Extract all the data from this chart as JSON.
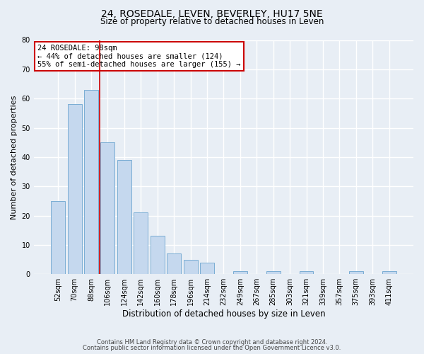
{
  "title": "24, ROSEDALE, LEVEN, BEVERLEY, HU17 5NE",
  "subtitle": "Size of property relative to detached houses in Leven",
  "bar_labels": [
    "52sqm",
    "70sqm",
    "88sqm",
    "106sqm",
    "124sqm",
    "142sqm",
    "160sqm",
    "178sqm",
    "196sqm",
    "214sqm",
    "232sqm",
    "249sqm",
    "267sqm",
    "285sqm",
    "303sqm",
    "321sqm",
    "339sqm",
    "357sqm",
    "375sqm",
    "393sqm",
    "411sqm"
  ],
  "bar_values": [
    25,
    58,
    63,
    45,
    39,
    21,
    13,
    7,
    5,
    4,
    0,
    1,
    0,
    1,
    0,
    1,
    0,
    0,
    1,
    0,
    1
  ],
  "bar_color": "#c5d8ee",
  "bar_edge_color": "#7aadd4",
  "ylabel": "Number of detached properties",
  "xlabel": "Distribution of detached houses by size in Leven",
  "ylim": [
    0,
    80
  ],
  "yticks": [
    0,
    10,
    20,
    30,
    40,
    50,
    60,
    70,
    80
  ],
  "annotation_box_text": "24 ROSEDALE: 98sqm\n← 44% of detached houses are smaller (124)\n55% of semi-detached houses are larger (155) →",
  "annotation_box_color": "#ffffff",
  "annotation_box_edge_color": "#cc0000",
  "vline_color": "#cc0000",
  "vline_x_idx": 2.5,
  "bg_color": "#e8eef5",
  "grid_color": "#ffffff",
  "footer_line1": "Contains HM Land Registry data © Crown copyright and database right 2024.",
  "footer_line2": "Contains public sector information licensed under the Open Government Licence v3.0."
}
